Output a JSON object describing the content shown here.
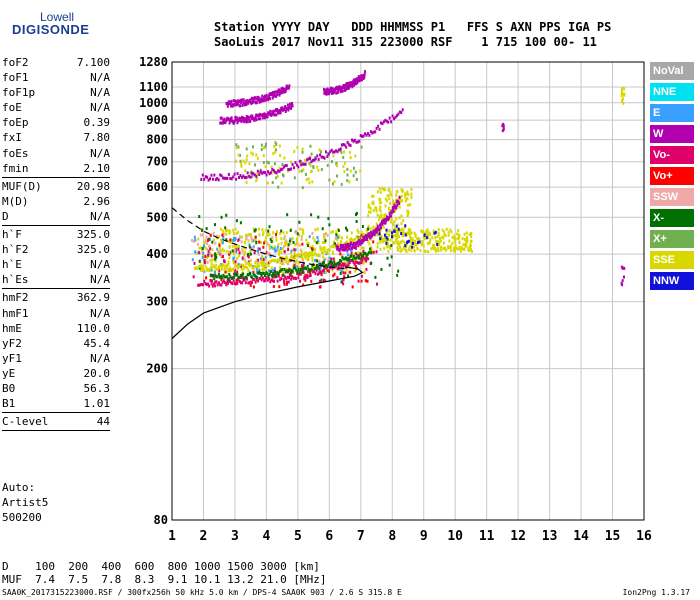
{
  "logo": {
    "line1": "Lowell",
    "line2": "DIGISONDE"
  },
  "header": {
    "row1": "Station YYYY DAY   DDD HHMMSS P1   FFS S AXN PPS IGA PS",
    "row2": "SaoLuis 2017 Nov11 315 223000 RSF    1 715 100 00- 11"
  },
  "params": [
    {
      "name": "foF2",
      "value": "7.100"
    },
    {
      "name": "foF1",
      "value": "N/A"
    },
    {
      "name": "foF1p",
      "value": "N/A"
    },
    {
      "name": "foE",
      "value": "N/A"
    },
    {
      "name": "foEp",
      "value": "0.39"
    },
    {
      "name": "fxI",
      "value": "7.80"
    },
    {
      "name": "foEs",
      "value": "N/A"
    },
    {
      "name": "fmin",
      "value": "2.10"
    },
    {
      "sep": true
    },
    {
      "name": "MUF(D)",
      "value": "20.98"
    },
    {
      "name": "M(D)",
      "value": "2.96"
    },
    {
      "name": "D",
      "value": "N/A"
    },
    {
      "sep": true
    },
    {
      "name": "h`F",
      "value": "325.0"
    },
    {
      "name": "h`F2",
      "value": "325.0"
    },
    {
      "name": "h`E",
      "value": "N/A"
    },
    {
      "name": "h`Es",
      "value": "N/A"
    },
    {
      "sep": true
    },
    {
      "name": "hmF2",
      "value": "362.9"
    },
    {
      "name": "hmF1",
      "value": "N/A"
    },
    {
      "name": "hmE",
      "value": "110.0"
    },
    {
      "name": "yF2",
      "value": "45.4"
    },
    {
      "name": "yF1",
      "value": "N/A"
    },
    {
      "name": "yE",
      "value": "20.0"
    },
    {
      "name": "B0",
      "value": "56.3"
    },
    {
      "name": "B1",
      "value": "1.01"
    },
    {
      "sep": true
    },
    {
      "name": "C-level",
      "value": "44"
    },
    {
      "sep": true
    }
  ],
  "auto": {
    "line1": "Auto:",
    "line2": "Artist5",
    "line3": "500200"
  },
  "legend": [
    {
      "label": "NoVal",
      "color": "#a8a8a8"
    },
    {
      "label": "NNE",
      "color": "#00e0f0"
    },
    {
      "label": "E",
      "color": "#3aa0ff"
    },
    {
      "label": "W",
      "color": "#b000b0"
    },
    {
      "label": "Vo-",
      "color": "#e0006a"
    },
    {
      "label": "Vo+",
      "color": "#ff0000"
    },
    {
      "label": "SSW",
      "color": "#f0a8a8"
    },
    {
      "label": "X-",
      "color": "#007000"
    },
    {
      "label": "X+",
      "color": "#70b050"
    },
    {
      "label": "SSE",
      "color": "#d8d800"
    },
    {
      "label": "NNW",
      "color": "#1010d8"
    }
  ],
  "mufTable": {
    "row1": "D    100  200  400  600  800 1000 1500 3000 [km]",
    "row2": "MUF  7.4  7.5  7.8  8.3  9.1 10.1 13.2 21.0 [MHz]"
  },
  "footer": {
    "left": "SAA0K_2017315223000.RSF / 300fx256h 50 kHz 5.0 km / DPS-4 SAA0K 903 / 2.6 S 315.8 E",
    "right": "Ion2Png 1.3.17"
  },
  "chart_data": {
    "type": "scatter",
    "xlim": [
      1,
      16
    ],
    "ylim": [
      80,
      1280
    ],
    "xticks": [
      "1",
      "2",
      "3",
      "4",
      "5",
      "6",
      "7",
      "8",
      "9",
      "10",
      "11",
      "12",
      "13",
      "14",
      "15",
      "16"
    ],
    "yticks": [
      "80",
      "200",
      "300",
      "400",
      "500",
      "600",
      "700",
      "800",
      "900",
      "1000",
      "1100",
      "1280"
    ],
    "grid": true,
    "yscale": "log",
    "profile_solid": [
      [
        1,
        240
      ],
      [
        1.5,
        262
      ],
      [
        2,
        280
      ],
      [
        3,
        300
      ],
      [
        4,
        315
      ],
      [
        5,
        328
      ],
      [
        6,
        340
      ],
      [
        6.8,
        350
      ],
      [
        7.05,
        358
      ],
      [
        6.9,
        366
      ],
      [
        6.5,
        370
      ]
    ],
    "profile_dashed": [
      [
        1,
        530
      ],
      [
        1.5,
        490
      ],
      [
        2,
        460
      ],
      [
        2.5,
        440
      ],
      [
        3,
        425
      ],
      [
        3.5,
        412
      ],
      [
        4,
        400
      ],
      [
        4.5,
        390
      ],
      [
        5,
        382
      ],
      [
        5.5,
        375
      ],
      [
        6,
        370
      ],
      [
        6.5,
        366
      ]
    ],
    "traces": [
      {
        "color": "#b000b0",
        "x0": 1.9,
        "x1": 8.3,
        "y0": 640,
        "y1": 960
      },
      {
        "color": "#b000b0",
        "x0": 2.5,
        "x1": 4.8,
        "y0": 905,
        "y1": 990
      },
      {
        "color": "#b000b0",
        "x0": 2.7,
        "x1": 4.7,
        "y0": 1005,
        "y1": 1110
      },
      {
        "color": "#b000b0",
        "x0": 5.8,
        "x1": 7.1,
        "y0": 1080,
        "y1": 1200
      },
      {
        "color": "#e0006a",
        "x0": 1.8,
        "x1": 7.2,
        "y0": 338,
        "y1": 395
      },
      {
        "color": "#007000",
        "x0": 2.2,
        "x1": 7.3,
        "y0": 352,
        "y1": 410
      },
      {
        "color": "#d8d800",
        "x0": 1.7,
        "x1": 7.6,
        "y0": 370,
        "y1": 470
      },
      {
        "color": "#b000b0",
        "x0": 6.2,
        "x1": 8.2,
        "y0": 420,
        "y1": 560
      }
    ],
    "clusters": [
      {
        "color": "#d8d800",
        "x0": 7.2,
        "x1": 10.5,
        "y0": 410,
        "y1": 470,
        "n": 260
      },
      {
        "color": "#d8d800",
        "x0": 7.2,
        "x1": 8.6,
        "y0": 430,
        "y1": 600,
        "n": 160
      },
      {
        "color": "#d8d800",
        "x0": 1.7,
        "x1": 7.2,
        "y0": 360,
        "y1": 470,
        "n": 380
      },
      {
        "color": "#3aa0ff",
        "x0": 1.6,
        "x1": 7.0,
        "y0": 360,
        "y1": 450,
        "n": 90
      },
      {
        "color": "#e0006a",
        "x0": 1.6,
        "x1": 7.5,
        "y0": 330,
        "y1": 420,
        "n": 120
      },
      {
        "color": "#007000",
        "x0": 1.8,
        "x1": 8.3,
        "y0": 340,
        "y1": 520,
        "n": 90
      },
      {
        "color": "#f0a8a8",
        "x0": 1.6,
        "x1": 6.5,
        "y0": 380,
        "y1": 460,
        "n": 60
      },
      {
        "color": "#70b050",
        "x0": 3.0,
        "x1": 7.0,
        "y0": 600,
        "y1": 800,
        "n": 70
      },
      {
        "color": "#d8d800",
        "x0": 3.0,
        "x1": 7.0,
        "y0": 620,
        "y1": 780,
        "n": 70
      },
      {
        "color": "#1010d8",
        "x0": 7.5,
        "x1": 9.5,
        "y0": 420,
        "y1": 480,
        "n": 30
      },
      {
        "color": "#ff0000",
        "x0": 2.0,
        "x1": 7.5,
        "y0": 330,
        "y1": 460,
        "n": 50
      },
      {
        "color": "#d8d800",
        "x0": 15.25,
        "x1": 15.35,
        "y0": 1000,
        "y1": 1100,
        "n": 12
      },
      {
        "color": "#b000b0",
        "x0": 11.45,
        "x1": 11.55,
        "y0": 820,
        "y1": 900,
        "n": 6
      },
      {
        "color": "#b000b0",
        "x0": 15.25,
        "x1": 15.35,
        "y0": 330,
        "y1": 390,
        "n": 8
      }
    ]
  }
}
